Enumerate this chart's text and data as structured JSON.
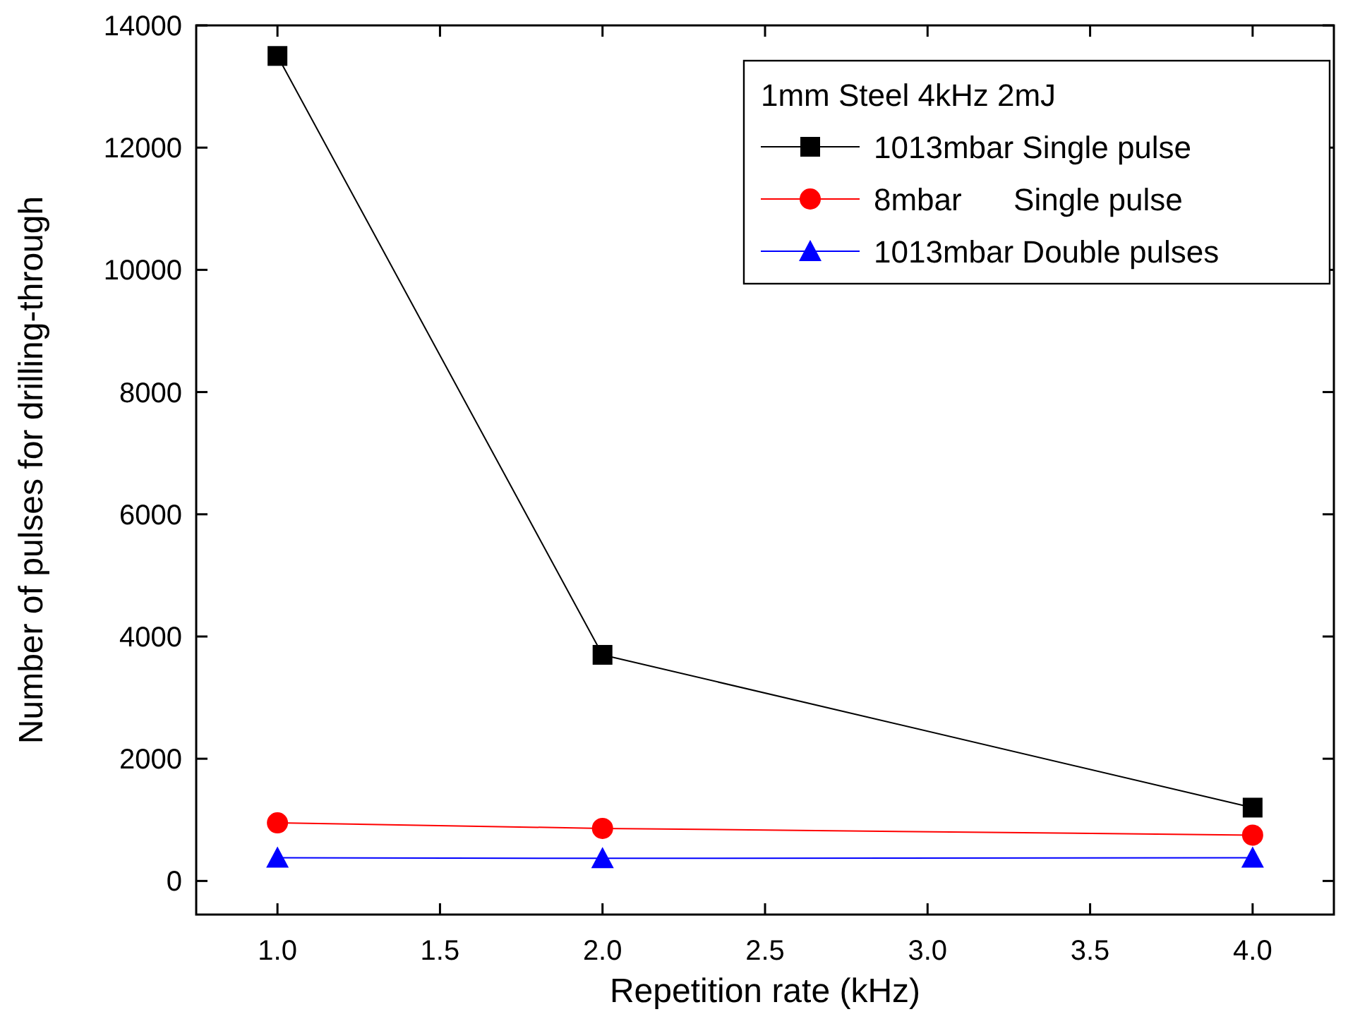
{
  "chart_data": {
    "type": "line",
    "xlabel": "Repetition rate (kHz)",
    "ylabel": "Number of pulses for drilling-through",
    "legend_title": "1mm Steel 4kHz 2mJ",
    "x": [
      1,
      2,
      4
    ],
    "series": [
      {
        "name": "1013mbar Single pulse",
        "color": "#000000",
        "marker": "square",
        "values": [
          13500,
          3700,
          1200
        ]
      },
      {
        "name": "8mbar      Single pulse",
        "color": "#ff0000",
        "marker": "circle",
        "values": [
          950,
          860,
          750
        ]
      },
      {
        "name": "1013mbar Double pulses",
        "color": "#0000ff",
        "marker": "triangle",
        "values": [
          380,
          370,
          380
        ]
      }
    ],
    "xlim": [
      0.75,
      4.25
    ],
    "xticks": [
      {
        "value": 1,
        "label": "1.0"
      },
      {
        "value": 1.5,
        "label": "1.5"
      },
      {
        "value": 2,
        "label": "2.0"
      },
      {
        "value": 2.5,
        "label": "2.5"
      },
      {
        "value": 3,
        "label": "3.0"
      },
      {
        "value": 3.5,
        "label": "3.5"
      },
      {
        "value": 4,
        "label": "4.0"
      }
    ],
    "ylim": [
      -550,
      14000
    ],
    "yticks": [
      0,
      2000,
      4000,
      6000,
      8000,
      10000,
      12000,
      14000
    ],
    "grid": false,
    "legend": "top right",
    "line_style": "solid"
  }
}
